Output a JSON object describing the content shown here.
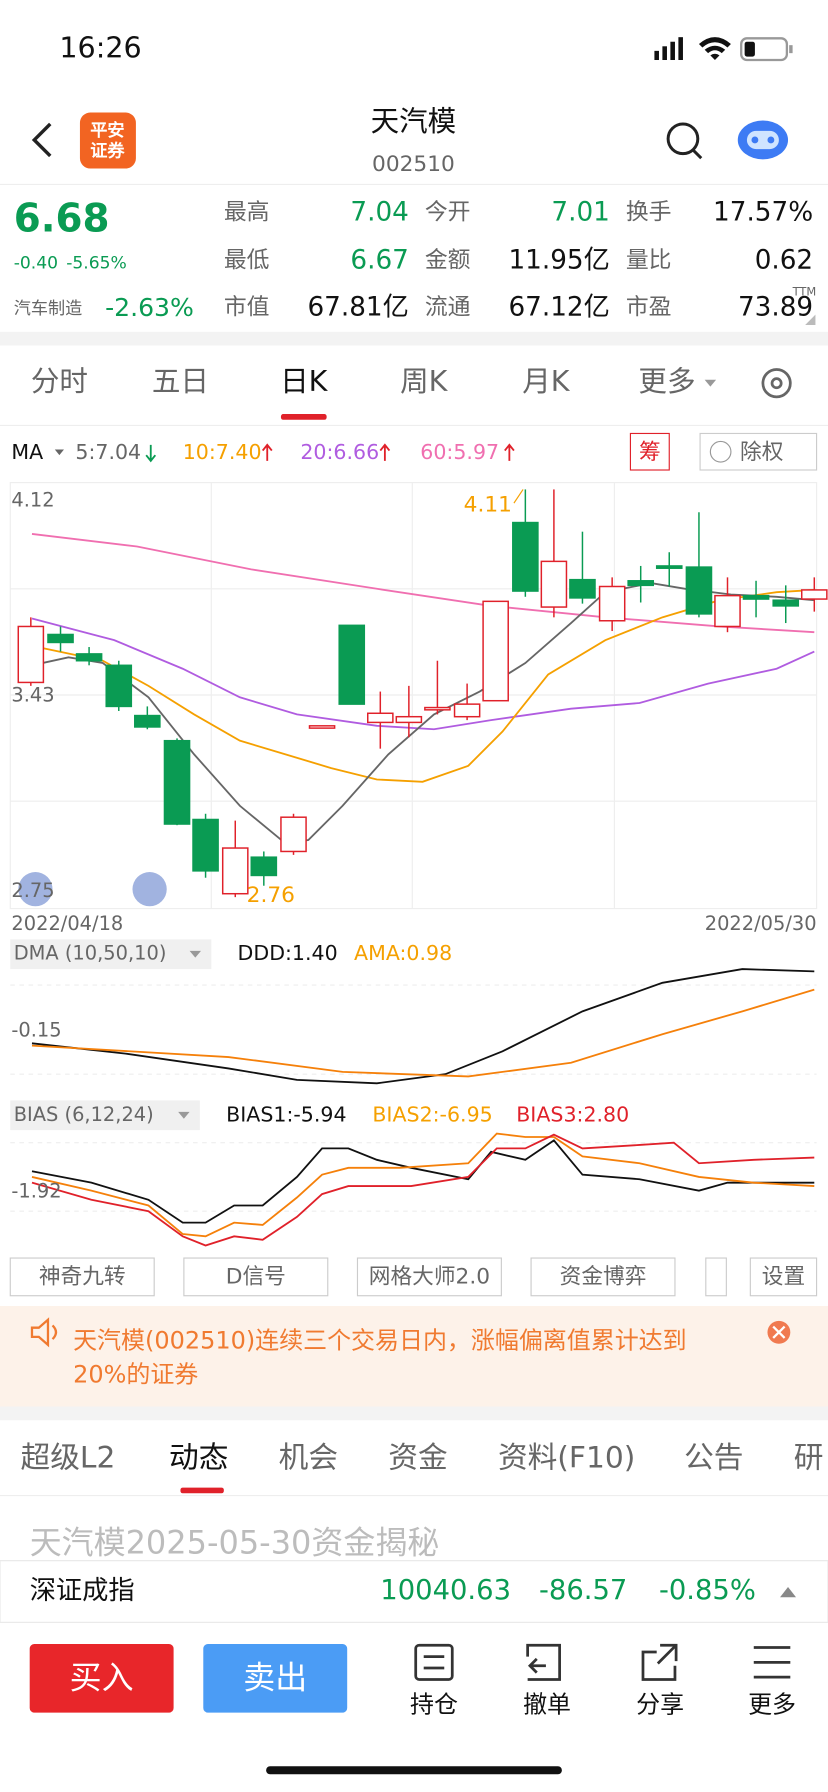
{
  "status": {
    "time": "16:26"
  },
  "header": {
    "title": "天汽模",
    "code": "002510",
    "logo": [
      "平安",
      "证券"
    ]
  },
  "quote": {
    "price": "6.68",
    "change": "-0.40",
    "change_pct": "-5.65%",
    "sector": "汽车制造",
    "sector_pct": "-2.63%",
    "ttm": "TTM",
    "fields": [
      {
        "label": "最高",
        "value": "7.04"
      },
      {
        "label": "今开",
        "value": "7.01"
      },
      {
        "label": "换手",
        "value": "17.57%"
      },
      {
        "label": "最低",
        "value": "6.67"
      },
      {
        "label": "金额",
        "value": "11.95亿"
      },
      {
        "label": "量比",
        "value": "0.62"
      },
      {
        "label": "市值",
        "value": "67.81亿"
      },
      {
        "label": "流通",
        "value": "67.12亿"
      },
      {
        "label": "市盈",
        "value": "73.89"
      }
    ]
  },
  "period_tabs": [
    "分时",
    "五日",
    "日K",
    "周K",
    "月K",
    "更多"
  ],
  "ma": {
    "label": "MA",
    "items": [
      "5:7.04",
      "10:7.40",
      "20:6.66",
      "60:5.97"
    ],
    "chip": "筹",
    "exright": "除权"
  },
  "kchart": {
    "axis": [
      "4.12",
      "3.43",
      "2.75"
    ],
    "high_label": "4.11",
    "low_label": "2.76",
    "start_date": "2022/04/18",
    "end_date": "2022/05/30"
  },
  "dma": {
    "label": "DMA (10,50,10)",
    "ddd": "DDD:1.40",
    "ama": "AMA:0.98",
    "axis": "-0.15"
  },
  "bias": {
    "label": "BIAS (6,12,24)",
    "b1": "BIAS1:-5.94",
    "b2": "BIAS2:-6.95",
    "b3": "BIAS3:2.80",
    "axis": "-1.92"
  },
  "tools": [
    "神奇九转",
    "D信号",
    "网格大师2.0",
    "资金博弈",
    "设置"
  ],
  "notice": [
    "天汽模(002510)连续三个交易日内，涨幅偏离值累计达到",
    "20%的证券"
  ],
  "info_tabs": [
    "超级L2",
    "动态",
    "机会",
    "资金",
    "资料(F10)",
    "公告",
    "研"
  ],
  "article": "天汽模2025-05-30资金揭秘",
  "index": {
    "name": "深证成指",
    "value": "10040.63",
    "change": "-86.57",
    "pct": "-0.85%"
  },
  "actions": {
    "buy": "买入",
    "sell": "卖出",
    "items": [
      "持仓",
      "撤单",
      "分享",
      "更多"
    ]
  }
}
